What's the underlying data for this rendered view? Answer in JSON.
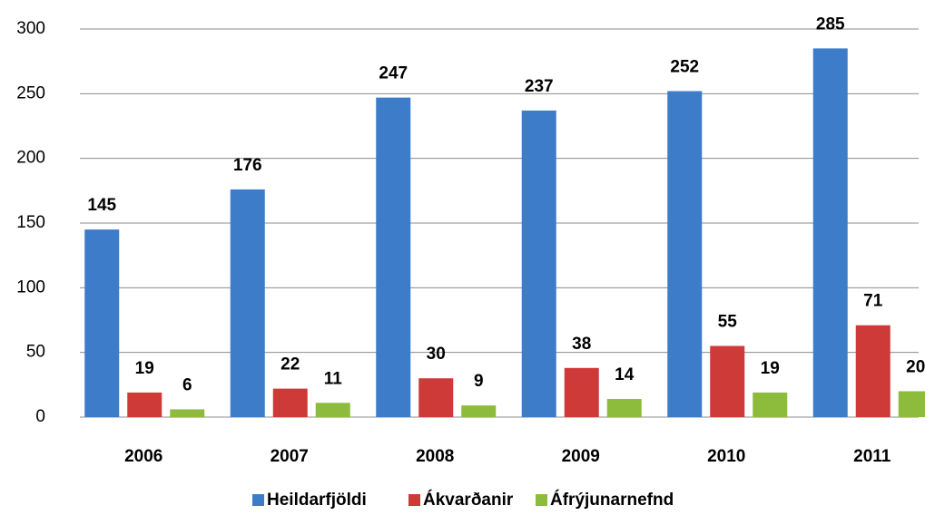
{
  "chart_data": {
    "type": "bar",
    "categories": [
      "2006",
      "2007",
      "2008",
      "2009",
      "2010",
      "2011"
    ],
    "series": [
      {
        "name": "Heildarfjöldi",
        "color": "#3d7cc9",
        "values": [
          145,
          176,
          247,
          237,
          252,
          285
        ]
      },
      {
        "name": "Ákvarðanir",
        "color": "#cd3a38",
        "values": [
          19,
          22,
          30,
          38,
          55,
          71
        ]
      },
      {
        "name": "Áfrýjunarnefnd",
        "color": "#8dbb3c",
        "values": [
          6,
          11,
          9,
          14,
          19,
          20
        ]
      }
    ],
    "ylim": [
      0,
      300
    ],
    "yticks": [
      0,
      50,
      100,
      150,
      200,
      250,
      300
    ],
    "grid": true,
    "legend": "bottom"
  }
}
